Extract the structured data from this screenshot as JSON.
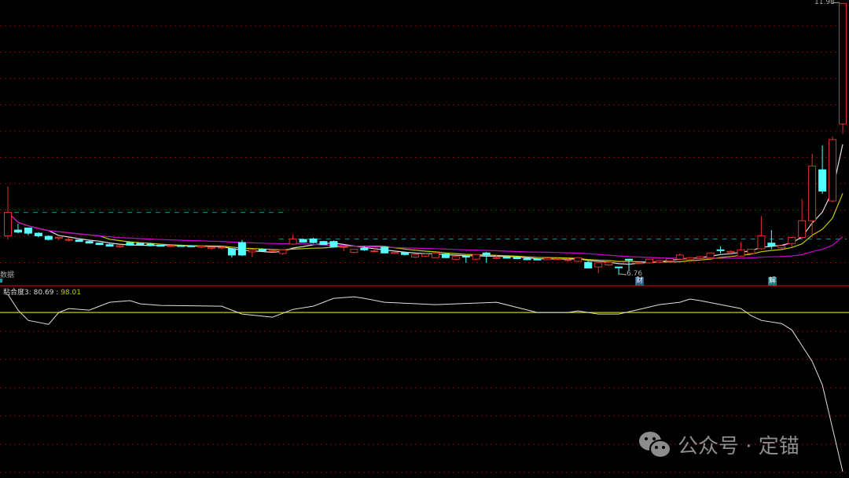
{
  "chart_data": [
    {
      "type": "candlestick",
      "price_ylim": [
        6.55,
        12.0
      ],
      "grid": true,
      "max_label": "11.98",
      "min_label": "6.76",
      "top_left_label": "数据",
      "event_tags": [
        {
          "candle": 61,
          "text": "财"
        },
        {
          "candle": 74,
          "text": "解"
        }
      ],
      "reference_lines": [
        {
          "price": 7.96,
          "from_candle": 1,
          "to_candle": 27,
          "color": "#1a8c8c"
        },
        {
          "price": 7.45,
          "from_candle": 27,
          "to_candle": 82,
          "color": "#1a8c8c"
        }
      ],
      "moving_averages": [
        {
          "period": 5,
          "color": "#dddddd"
        },
        {
          "period": 10,
          "color": "#c8c800"
        },
        {
          "period": 30,
          "color": "#cc00cc"
        }
      ],
      "colors": {
        "up": "#e03030",
        "down": "#54ffff",
        "grid": "#8b0000",
        "separator": "#a00000"
      },
      "ohlc": [
        [
          7.51,
          8.46,
          7.44,
          7.96
        ],
        [
          7.62,
          7.74,
          7.56,
          7.58
        ],
        [
          7.66,
          7.66,
          7.52,
          7.56
        ],
        [
          7.56,
          7.58,
          7.48,
          7.51
        ],
        [
          7.5,
          7.52,
          7.42,
          7.44
        ],
        [
          7.46,
          7.48,
          7.42,
          7.48
        ],
        [
          7.44,
          7.48,
          7.4,
          7.44
        ],
        [
          7.43,
          7.44,
          7.4,
          7.4
        ],
        [
          7.4,
          7.42,
          7.36,
          7.37
        ],
        [
          7.37,
          7.38,
          7.33,
          7.34
        ],
        [
          7.34,
          7.36,
          7.3,
          7.31
        ],
        [
          7.3,
          7.33,
          7.28,
          7.32
        ],
        [
          7.38,
          7.38,
          7.32,
          7.33
        ],
        [
          7.37,
          7.38,
          7.33,
          7.34
        ],
        [
          7.35,
          7.37,
          7.31,
          7.32
        ],
        [
          7.33,
          7.34,
          7.3,
          7.31
        ],
        [
          7.32,
          7.34,
          7.29,
          7.32
        ],
        [
          7.32,
          7.34,
          7.3,
          7.31
        ],
        [
          7.32,
          7.33,
          7.29,
          7.3
        ],
        [
          7.29,
          7.33,
          7.27,
          7.31
        ],
        [
          7.27,
          7.3,
          7.24,
          7.29
        ],
        [
          7.29,
          7.31,
          7.25,
          7.29
        ],
        [
          7.26,
          7.27,
          7.09,
          7.14
        ],
        [
          7.38,
          7.43,
          7.12,
          7.14
        ],
        [
          7.2,
          7.26,
          7.1,
          7.24
        ],
        [
          7.25,
          7.27,
          7.21,
          7.22
        ],
        [
          7.21,
          7.24,
          7.19,
          7.22
        ],
        [
          7.17,
          7.25,
          7.14,
          7.24
        ],
        [
          7.35,
          7.54,
          7.33,
          7.45
        ],
        [
          7.44,
          7.46,
          7.38,
          7.39
        ],
        [
          7.45,
          7.47,
          7.36,
          7.38
        ],
        [
          7.4,
          7.41,
          7.34,
          7.34
        ],
        [
          7.4,
          7.42,
          7.3,
          7.3
        ],
        [
          7.3,
          7.31,
          7.22,
          7.3
        ],
        [
          7.19,
          7.25,
          7.17,
          7.25
        ],
        [
          7.27,
          7.31,
          7.22,
          7.24
        ],
        [
          7.22,
          7.27,
          7.19,
          7.22
        ],
        [
          7.29,
          7.31,
          7.19,
          7.18
        ],
        [
          7.17,
          7.19,
          7.16,
          7.19
        ],
        [
          7.19,
          7.2,
          7.13,
          7.15
        ],
        [
          7.1,
          7.17,
          7.08,
          7.15
        ],
        [
          7.12,
          7.17,
          7.1,
          7.16
        ],
        [
          7.09,
          7.19,
          7.08,
          7.18
        ],
        [
          7.16,
          7.18,
          7.08,
          7.09
        ],
        [
          7.06,
          7.12,
          7.04,
          7.11
        ],
        [
          7.12,
          7.14,
          6.99,
          7.1
        ],
        [
          7.06,
          7.16,
          7.04,
          7.15
        ],
        [
          7.18,
          7.2,
          6.99,
          7.14
        ],
        [
          7.08,
          7.14,
          7.06,
          7.09
        ],
        [
          7.1,
          7.12,
          7.07,
          7.08
        ],
        [
          7.1,
          7.12,
          7.06,
          7.07
        ],
        [
          7.07,
          7.1,
          7.04,
          7.05
        ],
        [
          7.06,
          7.08,
          7.04,
          7.05
        ],
        [
          7.05,
          7.08,
          7.04,
          7.08
        ],
        [
          7.07,
          7.09,
          7.04,
          7.07
        ],
        [
          7.05,
          7.07,
          7.01,
          7.05
        ],
        [
          7.02,
          7.1,
          7.0,
          7.09
        ],
        [
          7.0,
          7.03,
          6.89,
          6.89
        ],
        [
          6.91,
          6.99,
          6.79,
          6.99
        ],
        [
          6.95,
          7.01,
          6.93,
          7.0
        ],
        [
          6.91,
          6.92,
          6.76,
          6.9
        ],
        [
          7.06,
          7.07,
          6.84,
          7.04
        ],
        [
          6.99,
          7.01,
          6.97,
          6.99
        ],
        [
          6.99,
          7.05,
          6.97,
          7.06
        ],
        [
          7.0,
          7.04,
          6.98,
          7.03
        ],
        [
          7.03,
          7.08,
          7.01,
          7.07
        ],
        [
          7.06,
          7.17,
          7.04,
          7.14
        ],
        [
          7.05,
          7.1,
          7.03,
          7.09
        ],
        [
          7.08,
          7.12,
          7.06,
          7.11
        ],
        [
          7.09,
          7.13,
          7.07,
          7.18
        ],
        [
          7.24,
          7.31,
          7.17,
          7.23
        ],
        [
          7.19,
          7.23,
          7.16,
          7.21
        ],
        [
          7.12,
          7.39,
          7.1,
          7.24
        ],
        [
          7.17,
          7.26,
          7.15,
          7.25
        ],
        [
          7.26,
          7.89,
          7.24,
          7.51
        ],
        [
          7.37,
          7.62,
          7.25,
          7.32
        ],
        [
          7.28,
          7.33,
          7.26,
          7.32
        ],
        [
          7.36,
          7.49,
          7.3,
          7.48
        ],
        [
          7.48,
          8.22,
          7.46,
          7.8
        ],
        [
          7.8,
          9.09,
          7.48,
          8.85
        ],
        [
          8.78,
          9.25,
          8.32,
          8.37
        ],
        [
          8.18,
          9.42,
          8.15,
          9.36
        ],
        [
          9.66,
          11.98,
          9.47,
          11.98
        ]
      ]
    },
    {
      "type": "line",
      "indicator_name": "粘合度3:",
      "indicator_value": "80.69",
      "reference_value": "98.01",
      "ylim": [
        80.0,
        100.84
      ],
      "colors": {
        "line": "#e0e0e0",
        "reference": "#c8c800"
      },
      "points": [
        [
          0,
          99.98
        ],
        [
          1,
          98.27
        ],
        [
          2,
          97.15
        ],
        [
          4,
          96.72
        ],
        [
          5,
          98.01
        ],
        [
          6,
          98.44
        ],
        [
          8,
          98.27
        ],
        [
          10,
          99.12
        ],
        [
          12,
          99.3
        ],
        [
          13,
          98.95
        ],
        [
          15,
          98.78
        ],
        [
          21,
          98.7
        ],
        [
          23,
          97.84
        ],
        [
          26,
          97.5
        ],
        [
          28,
          98.35
        ],
        [
          30,
          98.7
        ],
        [
          32,
          99.55
        ],
        [
          34,
          99.72
        ],
        [
          35,
          99.55
        ],
        [
          37,
          99.12
        ],
        [
          42,
          98.87
        ],
        [
          48,
          99.12
        ],
        [
          52,
          98.01
        ],
        [
          55,
          98.01
        ],
        [
          56,
          98.18
        ],
        [
          58,
          97.84
        ],
        [
          60,
          97.84
        ],
        [
          62,
          98.35
        ],
        [
          64,
          98.87
        ],
        [
          66,
          99.12
        ],
        [
          67,
          99.47
        ],
        [
          68,
          99.3
        ],
        [
          72,
          98.44
        ],
        [
          73,
          97.67
        ],
        [
          74,
          97.15
        ],
        [
          76,
          96.81
        ],
        [
          77,
          96.12
        ],
        [
          79,
          92.7
        ],
        [
          80,
          90.13
        ],
        [
          82,
          80.69
        ]
      ]
    }
  ],
  "watermark": {
    "icon": "wechat-icon",
    "text": "公众号 · 定锚"
  }
}
